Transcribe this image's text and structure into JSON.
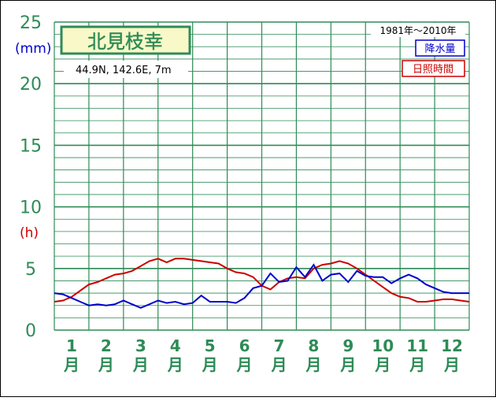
{
  "chart_data": {
    "type": "line",
    "title": "北見枝幸",
    "location": "44.9N,  142.6E,  7m",
    "period": "1981年～2010年",
    "units": {
      "precip": "(mm)",
      "sunshine": "(h)"
    },
    "ylim": [
      0,
      25
    ],
    "yticks": [
      "0",
      "5",
      "10",
      "15",
      "20",
      "25"
    ],
    "x_tick_numbers": [
      "1",
      "2",
      "3",
      "4",
      "5",
      "6",
      "7",
      "8",
      "9",
      "10",
      "11",
      "12"
    ],
    "x_tick_suffix": "月",
    "x_range": [
      1,
      13
    ],
    "grid": true,
    "colors": {
      "grid": "#2e8b57",
      "precip": "#0000cc",
      "sunshine": "#cc0000",
      "tick": "#2e8b57"
    },
    "series": [
      {
        "name": "降水量",
        "x": [
          1.0,
          1.25,
          1.5,
          1.75,
          2.0,
          2.25,
          2.5,
          2.75,
          3.0,
          3.25,
          3.5,
          3.75,
          4.0,
          4.25,
          4.5,
          4.75,
          5.0,
          5.25,
          5.5,
          5.75,
          6.0,
          6.25,
          6.5,
          6.75,
          7.0,
          7.25,
          7.5,
          7.75,
          8.0,
          8.25,
          8.5,
          8.75,
          9.0,
          9.25,
          9.5,
          9.75,
          10.0,
          10.25,
          10.5,
          10.75,
          11.0,
          11.25,
          11.5,
          11.75,
          12.0,
          12.25,
          12.5,
          12.75,
          13.0
        ],
        "values": [
          3.0,
          2.9,
          2.6,
          2.3,
          2.0,
          2.1,
          2.0,
          2.1,
          2.4,
          2.1,
          1.8,
          2.1,
          2.4,
          2.2,
          2.3,
          2.1,
          2.2,
          2.8,
          2.3,
          2.3,
          2.3,
          2.2,
          2.6,
          3.4,
          3.6,
          4.6,
          3.9,
          4.0,
          5.1,
          4.3,
          5.3,
          4.0,
          4.5,
          4.6,
          3.9,
          4.8,
          4.4,
          4.3,
          4.3,
          3.8,
          4.2,
          4.5,
          4.2,
          3.7,
          3.4,
          3.1,
          3.0,
          3.0,
          3.0
        ]
      },
      {
        "name": "日照時間",
        "x": [
          1.0,
          1.25,
          1.5,
          1.75,
          2.0,
          2.25,
          2.5,
          2.75,
          3.0,
          3.25,
          3.5,
          3.75,
          4.0,
          4.25,
          4.5,
          4.75,
          5.0,
          5.25,
          5.5,
          5.75,
          6.0,
          6.25,
          6.5,
          6.75,
          7.0,
          7.25,
          7.5,
          7.75,
          8.0,
          8.25,
          8.5,
          8.75,
          9.0,
          9.25,
          9.5,
          9.75,
          10.0,
          10.25,
          10.5,
          10.75,
          11.0,
          11.25,
          11.5,
          11.75,
          12.0,
          12.25,
          12.5,
          12.75,
          13.0
        ],
        "values": [
          2.3,
          2.4,
          2.7,
          3.2,
          3.7,
          3.9,
          4.2,
          4.5,
          4.6,
          4.8,
          5.2,
          5.6,
          5.8,
          5.5,
          5.8,
          5.8,
          5.7,
          5.6,
          5.5,
          5.4,
          5.0,
          4.7,
          4.6,
          4.3,
          3.6,
          3.3,
          3.9,
          4.2,
          4.3,
          4.2,
          5.0,
          5.3,
          5.4,
          5.6,
          5.4,
          5.0,
          4.5,
          4.0,
          3.5,
          3.0,
          2.7,
          2.6,
          2.3,
          2.3,
          2.4,
          2.5,
          2.5,
          2.4,
          2.3
        ]
      }
    ]
  }
}
